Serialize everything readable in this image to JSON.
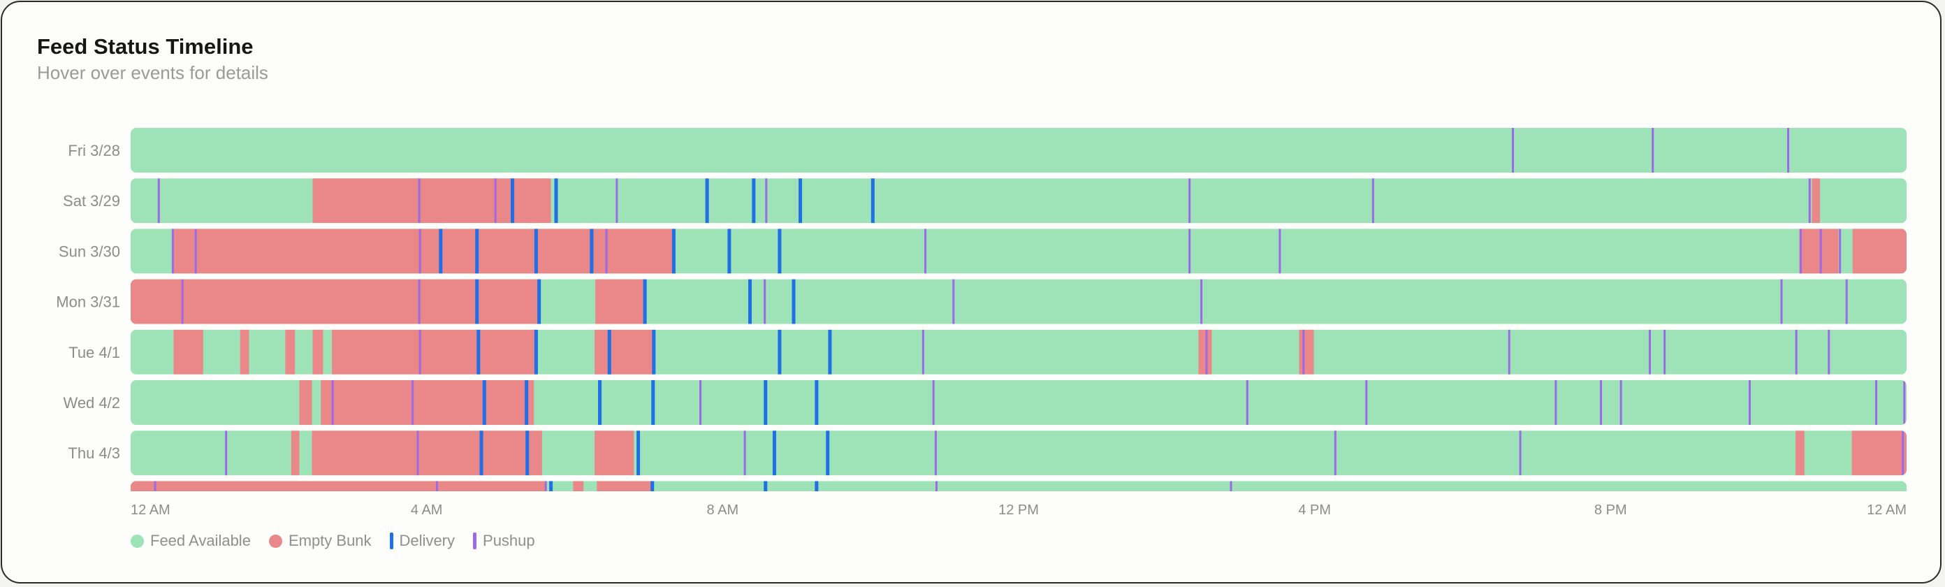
{
  "header": {
    "title": "Feed Status Timeline",
    "subtitle": "Hover over events for details"
  },
  "colors": {
    "feed": "#9ee3b8",
    "empty": "#ea8788",
    "delivery": "#1f6fe6",
    "pushup": "#9b6ae6"
  },
  "legend": [
    {
      "label": "Feed Available",
      "kind": "circle",
      "color": "#9ee3b8"
    },
    {
      "label": "Empty Bunk",
      "kind": "circle",
      "color": "#ea8788"
    },
    {
      "label": "Delivery",
      "kind": "line",
      "color": "#1f6fe6"
    },
    {
      "label": "Pushup",
      "kind": "line",
      "color": "#9b6ae6"
    }
  ],
  "chart_data": {
    "type": "timeline",
    "x_unit": "hour of day",
    "xlim": [
      0,
      24
    ],
    "x_ticks": [
      {
        "value": 0,
        "label": "12 AM"
      },
      {
        "value": 4,
        "label": "4 AM"
      },
      {
        "value": 8,
        "label": "8 AM"
      },
      {
        "value": 12,
        "label": "12 PM"
      },
      {
        "value": 16,
        "label": "4 PM"
      },
      {
        "value": 20,
        "label": "8 PM"
      },
      {
        "value": 24,
        "label": "12 AM"
      }
    ],
    "rows": [
      {
        "label": "Fri 3/28",
        "empty": [],
        "delivery": [],
        "pushup": [
          18.68,
          20.57,
          22.4
        ]
      },
      {
        "label": "Sat 3/29",
        "empty": [
          [
            2.46,
            5.68
          ],
          [
            22.72,
            22.83
          ]
        ],
        "delivery": [
          5.16,
          5.75,
          7.79,
          8.42,
          9.05,
          10.03
        ],
        "pushup": [
          0.38,
          3.9,
          4.93,
          6.57,
          8.59,
          14.31,
          16.79,
          22.69
        ]
      },
      {
        "label": "Sun 3/30",
        "empty": [
          [
            0.56,
            7.34
          ],
          [
            22.55,
            23.08
          ],
          [
            23.27,
            24.0
          ]
        ],
        "delivery": [
          4.19,
          4.68,
          5.48,
          6.23,
          7.34,
          8.09,
          8.77
        ],
        "pushup": [
          0.57,
          0.88,
          3.91,
          6.43,
          10.74,
          14.31,
          15.53,
          22.57,
          22.84,
          23.1
        ]
      },
      {
        "label": "Mon 3/31",
        "empty": [
          [
            0.0,
            5.54
          ],
          [
            6.28,
            6.95
          ]
        ],
        "delivery": [
          4.68,
          5.52,
          6.95,
          8.37,
          8.96
        ],
        "pushup": [
          0.7,
          3.9,
          8.57,
          11.12,
          14.47,
          22.31,
          23.19
        ]
      },
      {
        "label": "Tue 4/1",
        "empty": [
          [
            0.58,
            0.98
          ],
          [
            1.48,
            1.6
          ],
          [
            2.09,
            2.22
          ],
          [
            2.46,
            2.6
          ],
          [
            2.72,
            5.48
          ],
          [
            6.27,
            7.07
          ],
          [
            14.43,
            14.61
          ],
          [
            15.79,
            15.99
          ]
        ],
        "delivery": [
          4.7,
          5.48,
          6.47,
          7.07,
          8.77,
          9.45
        ],
        "pushup": [
          3.91,
          10.71,
          14.54,
          15.85,
          18.63,
          20.53,
          20.73,
          22.51,
          22.95
        ]
      },
      {
        "label": "Wed 4/2",
        "empty": [
          [
            2.28,
            2.45
          ],
          [
            2.57,
            5.45
          ]
        ],
        "delivery": [
          4.78,
          5.35,
          6.34,
          7.06,
          8.58,
          9.27
        ],
        "pushup": [
          2.73,
          3.81,
          6.35,
          7.7,
          10.85,
          15.09,
          16.7,
          19.26,
          19.87,
          20.14,
          21.88,
          23.59,
          23.97
        ]
      },
      {
        "label": "Thu 4/3",
        "empty": [
          [
            2.17,
            2.28
          ],
          [
            2.45,
            5.56
          ],
          [
            6.27,
            6.8
          ],
          [
            22.5,
            22.62
          ],
          [
            23.26,
            24.0
          ]
        ],
        "delivery": [
          4.74,
          5.36,
          6.86,
          8.7,
          9.42
        ],
        "pushup": [
          1.29,
          3.88,
          8.3,
          10.88,
          16.28,
          18.78,
          23.95
        ]
      },
      {
        "label": "",
        "empty": [
          [
            0.0,
            5.62
          ],
          [
            5.98,
            6.12
          ],
          [
            6.3,
            7.07
          ]
        ],
        "delivery": [
          5.68,
          7.05,
          8.58,
          9.27
        ],
        "pushup": [
          0.33,
          4.14,
          5.61,
          10.89,
          14.87
        ]
      }
    ]
  }
}
